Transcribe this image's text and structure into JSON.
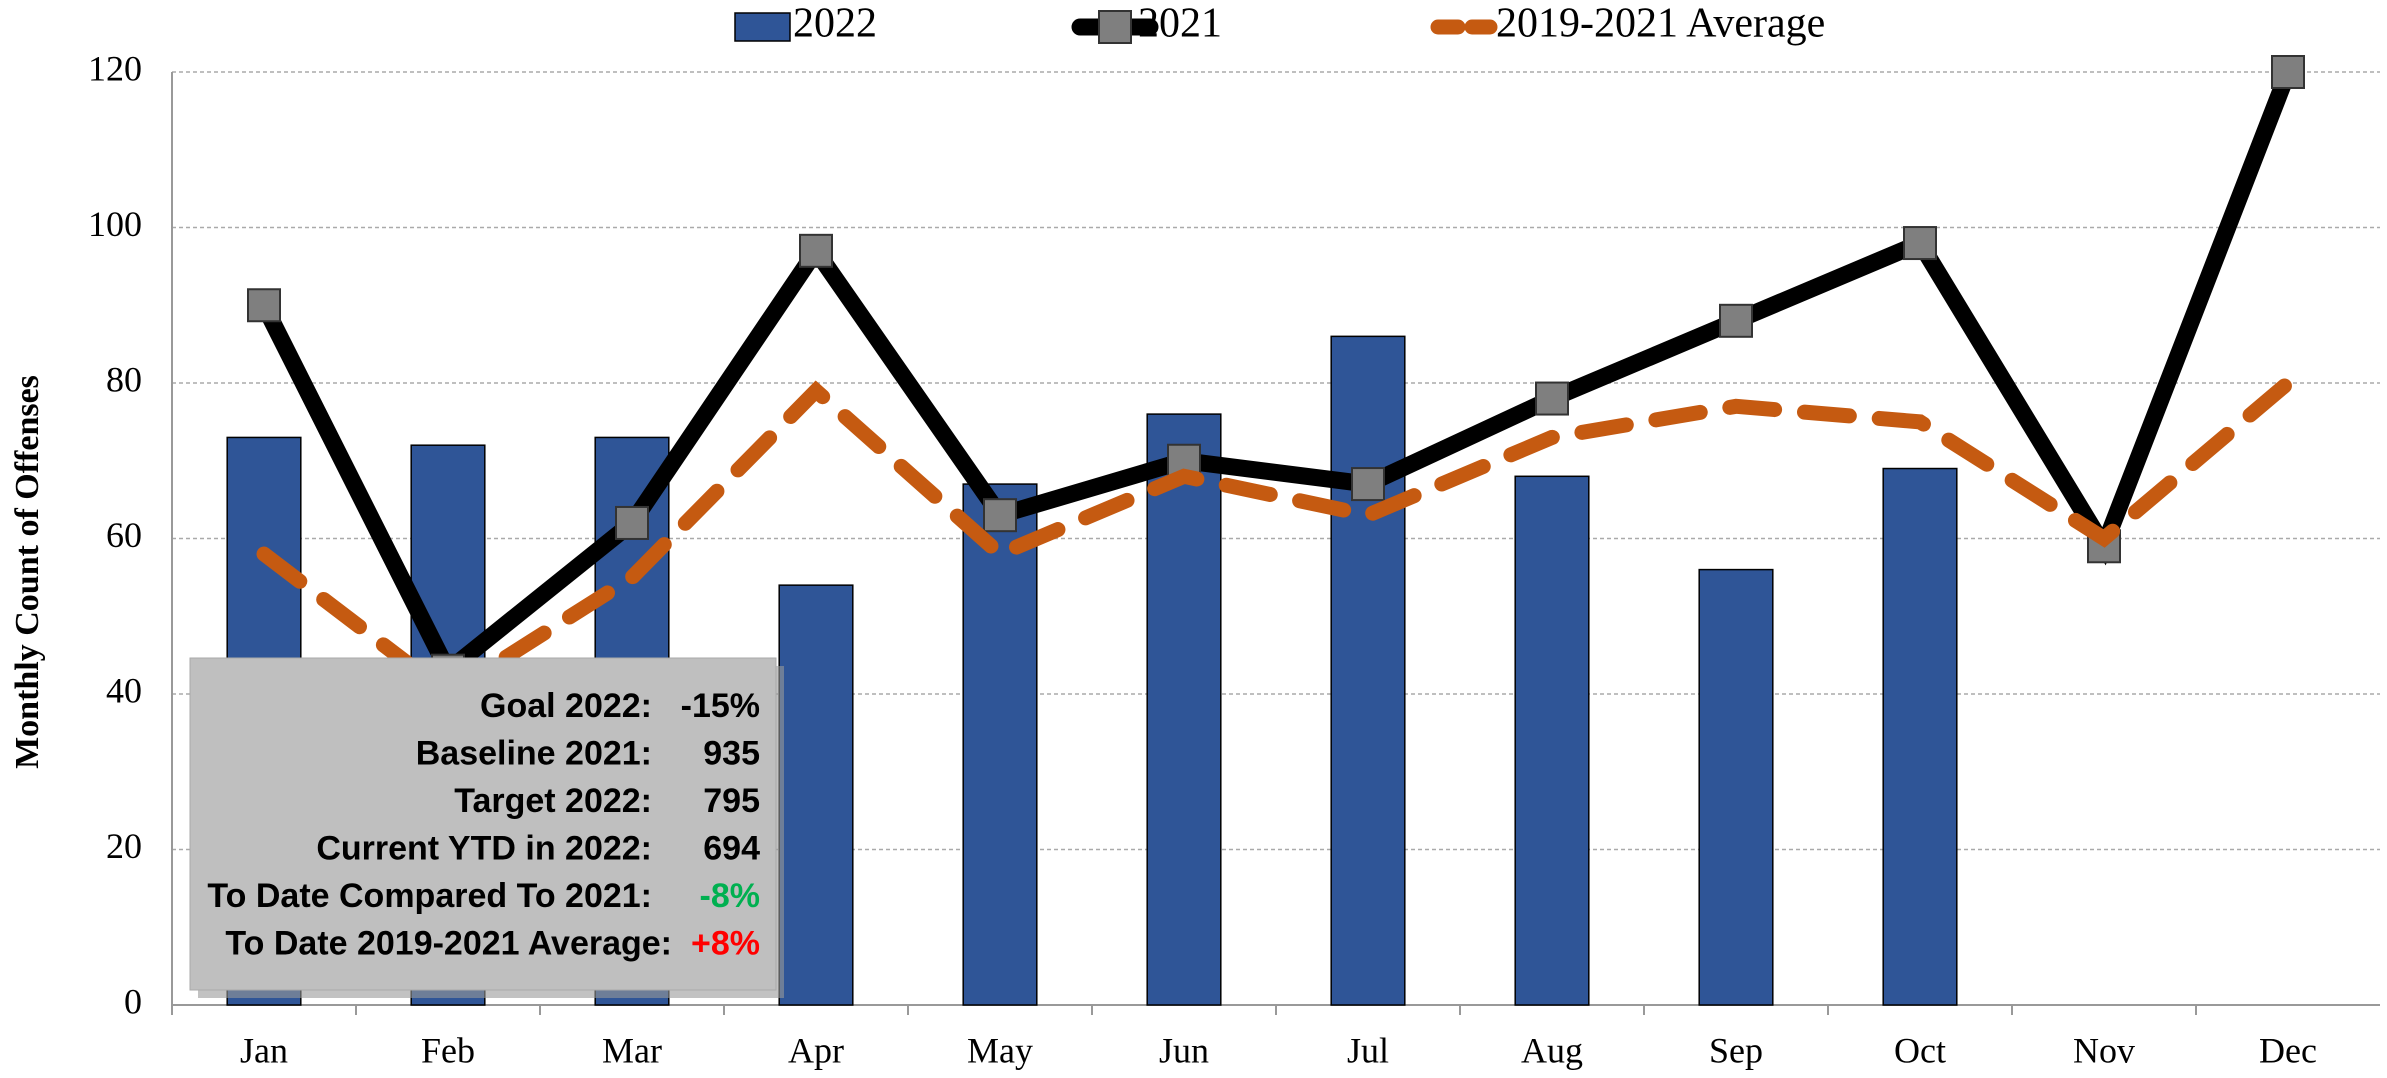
{
  "chart_data": {
    "type": "bar_line",
    "y_axis_label": "Monthly Count of Offenses",
    "categories": [
      "Jan",
      "Feb",
      "Mar",
      "Apr",
      "May",
      "Jun",
      "Jul",
      "Aug",
      "Sep",
      "Oct",
      "Nov",
      "Dec"
    ],
    "series": [
      {
        "name": "2022",
        "kind": "bar",
        "color": "#2f5597",
        "values": [
          73,
          72,
          73,
          54,
          67,
          76,
          86,
          68,
          56,
          69,
          null,
          null
        ]
      },
      {
        "name": "2021",
        "kind": "line",
        "color": "#000000",
        "marker_color": "#7f7f7f",
        "values": [
          90,
          43,
          62,
          97,
          63,
          70,
          67,
          78,
          88,
          98,
          59,
          120
        ]
      },
      {
        "name": "2019-2021 Average",
        "kind": "dashed",
        "color": "#c55a11",
        "values": [
          58,
          40,
          55,
          79,
          58,
          68,
          63,
          73,
          77,
          75,
          60,
          80
        ]
      }
    ],
    "ylim": [
      0,
      120
    ],
    "yticks": [
      0,
      20,
      40,
      60,
      80,
      100,
      120
    ],
    "grid": true,
    "legend": "top",
    "info_box": [
      {
        "label": "Goal 2022:",
        "value": "-15%",
        "color": "#000000"
      },
      {
        "label": "Baseline 2021:",
        "value": "935",
        "color": "#000000"
      },
      {
        "label": "Target 2022:",
        "value": "795",
        "color": "#000000"
      },
      {
        "label": "Current YTD in 2022:",
        "value": "694",
        "color": "#000000"
      },
      {
        "label": "To Date Compared To 2021:",
        "value": "-8%",
        "color": "#00b050"
      },
      {
        "label": "To Date 2019-2021 Average:",
        "value": "+8%",
        "color": "#ff0000"
      }
    ]
  }
}
